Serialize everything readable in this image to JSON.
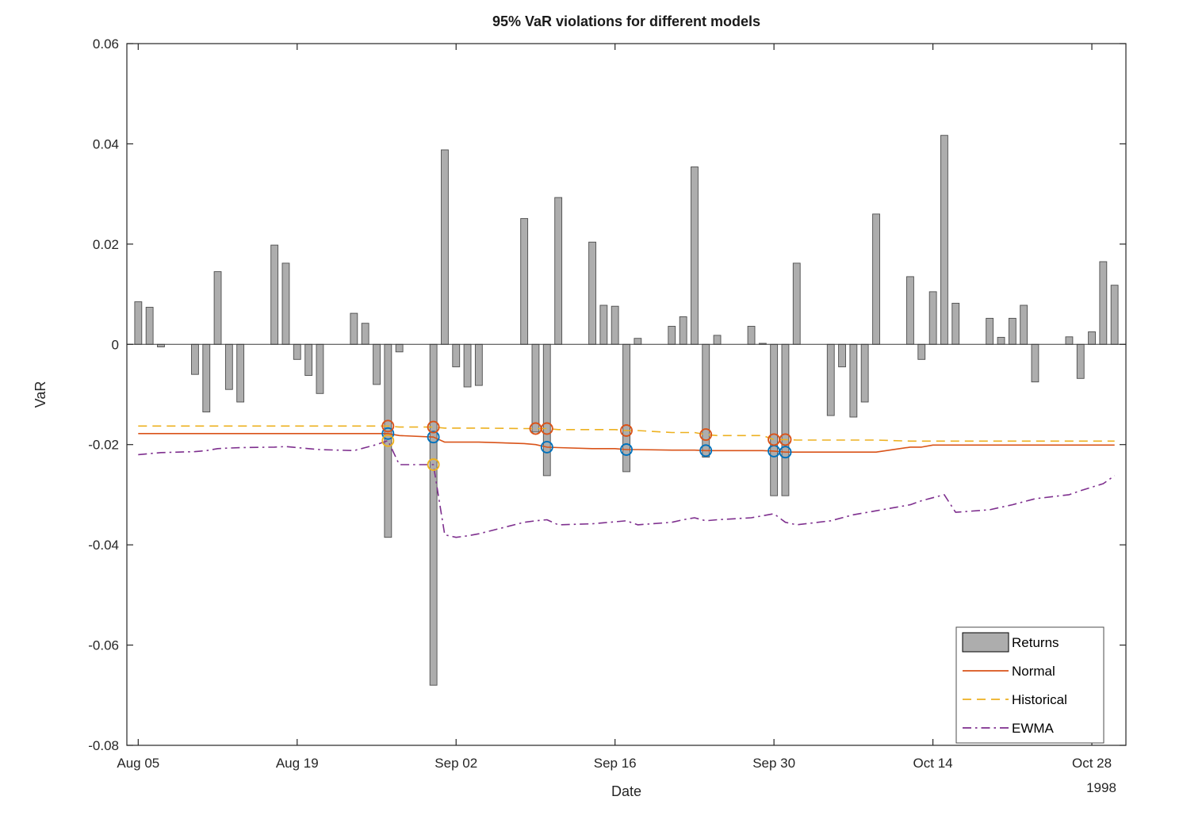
{
  "figure": {
    "title": "95% VaR violations for different models",
    "xlabel": "Date",
    "ylabel": "VaR",
    "year_label": "1998"
  },
  "colors": {
    "bar_fill": "#ADADAD",
    "bar_edge": "#4D4D4D",
    "normal": "#D95319",
    "historical": "#EDB120",
    "ewma": "#7E2F8E",
    "normal_violation": "#0072BD",
    "historical_violation": "#D95319",
    "ewma_violation": "#EDB120",
    "axis": "#262626",
    "legend_border": "#4D4D4D"
  },
  "chart_data": {
    "type": "bar+line",
    "title": "95% VaR violations for different models",
    "xlabel": "Date",
    "ylabel": "VaR",
    "year": "1998",
    "ylim": [
      -0.08,
      0.06
    ],
    "yticks": [
      -0.08,
      -0.06,
      -0.04,
      -0.02,
      0,
      0.02,
      0.04,
      0.06
    ],
    "xlim": [
      "1998-08-04",
      "1998-10-31"
    ],
    "xticks": [
      {
        "date": "1998-08-05",
        "label": "Aug 05"
      },
      {
        "date": "1998-08-19",
        "label": "Aug 19"
      },
      {
        "date": "1998-09-02",
        "label": "Sep 02"
      },
      {
        "date": "1998-09-16",
        "label": "Sep 16"
      },
      {
        "date": "1998-09-30",
        "label": "Sep 30"
      },
      {
        "date": "1998-10-14",
        "label": "Oct 14"
      },
      {
        "date": "1998-10-28",
        "label": "Oct 28"
      }
    ],
    "grid": false,
    "dates": [
      "1998-08-05",
      "1998-08-06",
      "1998-08-07",
      "1998-08-10",
      "1998-08-11",
      "1998-08-12",
      "1998-08-13",
      "1998-08-14",
      "1998-08-17",
      "1998-08-18",
      "1998-08-19",
      "1998-08-20",
      "1998-08-21",
      "1998-08-24",
      "1998-08-25",
      "1998-08-26",
      "1998-08-27",
      "1998-08-28",
      "1998-08-31",
      "1998-09-01",
      "1998-09-02",
      "1998-09-03",
      "1998-09-04",
      "1998-09-08",
      "1998-09-09",
      "1998-09-10",
      "1998-09-11",
      "1998-09-14",
      "1998-09-15",
      "1998-09-16",
      "1998-09-17",
      "1998-09-18",
      "1998-09-21",
      "1998-09-22",
      "1998-09-23",
      "1998-09-24",
      "1998-09-25",
      "1998-09-28",
      "1998-09-29",
      "1998-09-30",
      "1998-10-01",
      "1998-10-02",
      "1998-10-05",
      "1998-10-06",
      "1998-10-07",
      "1998-10-08",
      "1998-10-09",
      "1998-10-12",
      "1998-10-13",
      "1998-10-14",
      "1998-10-15",
      "1998-10-16",
      "1998-10-19",
      "1998-10-20",
      "1998-10-21",
      "1998-10-22",
      "1998-10-23",
      "1998-10-26",
      "1998-10-27",
      "1998-10-28",
      "1998-10-29",
      "1998-10-30"
    ],
    "returns": [
      0.0085,
      0.0074,
      -0.0005,
      -0.006,
      -0.0135,
      0.0145,
      -0.009,
      -0.0115,
      0.0198,
      0.0162,
      -0.003,
      -0.0062,
      -0.0098,
      0.0062,
      0.0042,
      -0.008,
      -0.0385,
      -0.0015,
      -0.068,
      0.0388,
      -0.0045,
      -0.0085,
      -0.0082,
      0.0251,
      -0.0175,
      -0.0262,
      0.0293,
      0.0204,
      0.0078,
      0.0076,
      -0.0254,
      0.0012,
      0.0036,
      0.0055,
      0.0354,
      -0.0225,
      0.0018,
      0.0036,
      0.0002,
      -0.0302,
      -0.0302,
      0.0162,
      -0.0142,
      -0.0045,
      -0.0145,
      -0.0115,
      0.026,
      0.0135,
      -0.003,
      0.0105,
      0.0417,
      0.0082,
      0.0052,
      0.0014,
      0.0052,
      0.0078,
      -0.0075,
      0.0015,
      -0.0068,
      0.0025,
      0.0165,
      0.0118
    ],
    "series": [
      {
        "name": "Normal",
        "style": "solid",
        "color": "#D95319",
        "values": [
          -0.0178,
          -0.0178,
          -0.0178,
          -0.0178,
          -0.0178,
          -0.0178,
          -0.0178,
          -0.0178,
          -0.0178,
          -0.0178,
          -0.0178,
          -0.0178,
          -0.0178,
          -0.0178,
          -0.0178,
          -0.0178,
          -0.0178,
          -0.0182,
          -0.0185,
          -0.0195,
          -0.0195,
          -0.0195,
          -0.0195,
          -0.0198,
          -0.02,
          -0.0205,
          -0.0206,
          -0.0208,
          -0.0208,
          -0.0208,
          -0.021,
          -0.021,
          -0.0211,
          -0.0211,
          -0.0211,
          -0.0212,
          -0.0212,
          -0.0212,
          -0.0212,
          -0.0213,
          -0.0215,
          -0.0215,
          -0.0215,
          -0.0215,
          -0.0215,
          -0.0215,
          -0.0215,
          -0.0205,
          -0.0205,
          -0.0201,
          -0.0201,
          -0.0201,
          -0.0201,
          -0.0201,
          -0.0201,
          -0.0201,
          -0.0201,
          -0.0201,
          -0.0201,
          -0.0201,
          -0.0201,
          -0.0201
        ]
      },
      {
        "name": "Historical",
        "style": "dashed",
        "color": "#EDB120",
        "values": [
          -0.0163,
          -0.0163,
          -0.0163,
          -0.0163,
          -0.0163,
          -0.0163,
          -0.0163,
          -0.0163,
          -0.0163,
          -0.0163,
          -0.0163,
          -0.0163,
          -0.0163,
          -0.0163,
          -0.0163,
          -0.0163,
          -0.0163,
          -0.0165,
          -0.0165,
          -0.0167,
          -0.0167,
          -0.0167,
          -0.0167,
          -0.0168,
          -0.0168,
          -0.0168,
          -0.017,
          -0.017,
          -0.017,
          -0.017,
          -0.0172,
          -0.0172,
          -0.0176,
          -0.0176,
          -0.0176,
          -0.018,
          -0.0182,
          -0.0182,
          -0.0182,
          -0.019,
          -0.019,
          -0.0191,
          -0.0191,
          -0.0191,
          -0.0191,
          -0.0191,
          -0.0191,
          -0.0193,
          -0.0193,
          -0.0193,
          -0.0193,
          -0.0193,
          -0.0193,
          -0.0193,
          -0.0193,
          -0.0193,
          -0.0193,
          -0.0193,
          -0.0193,
          -0.0193,
          -0.0193,
          -0.0193
        ]
      },
      {
        "name": "EWMA",
        "style": "dashdot",
        "color": "#7E2F8E",
        "values": [
          -0.022,
          -0.0218,
          -0.0216,
          -0.0214,
          -0.0212,
          -0.0208,
          -0.0207,
          -0.0206,
          -0.0205,
          -0.0204,
          -0.0206,
          -0.0208,
          -0.021,
          -0.0212,
          -0.0206,
          -0.02,
          -0.0192,
          -0.024,
          -0.024,
          -0.038,
          -0.0385,
          -0.0382,
          -0.0378,
          -0.0355,
          -0.0352,
          -0.035,
          -0.036,
          -0.0358,
          -0.0356,
          -0.0354,
          -0.0352,
          -0.036,
          -0.0355,
          -0.035,
          -0.0346,
          -0.0352,
          -0.035,
          -0.0346,
          -0.0342,
          -0.0338,
          -0.0355,
          -0.036,
          -0.0352,
          -0.0346,
          -0.034,
          -0.0336,
          -0.0332,
          -0.032,
          -0.0312,
          -0.0306,
          -0.03,
          -0.0335,
          -0.033,
          -0.0325,
          -0.032,
          -0.0314,
          -0.0308,
          -0.03,
          -0.0292,
          -0.0285,
          -0.0278,
          -0.0262
        ]
      }
    ],
    "violations": [
      {
        "model": "Normal",
        "color": "#0072BD",
        "points": [
          {
            "date": "1998-08-27",
            "value": -0.0178
          },
          {
            "date": "1998-08-31",
            "value": -0.0185
          },
          {
            "date": "1998-09-10",
            "value": -0.0205
          },
          {
            "date": "1998-09-17",
            "value": -0.021
          },
          {
            "date": "1998-09-24",
            "value": -0.0212
          },
          {
            "date": "1998-09-30",
            "value": -0.0213
          },
          {
            "date": "1998-10-01",
            "value": -0.0215
          }
        ]
      },
      {
        "model": "Historical",
        "color": "#D95319",
        "points": [
          {
            "date": "1998-08-27",
            "value": -0.0163
          },
          {
            "date": "1998-08-31",
            "value": -0.0165
          },
          {
            "date": "1998-09-09",
            "value": -0.0168
          },
          {
            "date": "1998-09-10",
            "value": -0.0168
          },
          {
            "date": "1998-09-17",
            "value": -0.0172
          },
          {
            "date": "1998-09-24",
            "value": -0.018
          },
          {
            "date": "1998-09-30",
            "value": -0.019
          },
          {
            "date": "1998-10-01",
            "value": -0.019
          }
        ]
      },
      {
        "model": "EWMA",
        "color": "#EDB120",
        "points": [
          {
            "date": "1998-08-27",
            "value": -0.0192
          },
          {
            "date": "1998-08-31",
            "value": -0.024
          }
        ]
      }
    ],
    "legend": {
      "position": "bottom-right",
      "entries": [
        {
          "label": "Returns",
          "type": "patch"
        },
        {
          "label": "Normal",
          "type": "line"
        },
        {
          "label": "Historical",
          "type": "line"
        },
        {
          "label": "EWMA",
          "type": "line"
        }
      ]
    }
  }
}
